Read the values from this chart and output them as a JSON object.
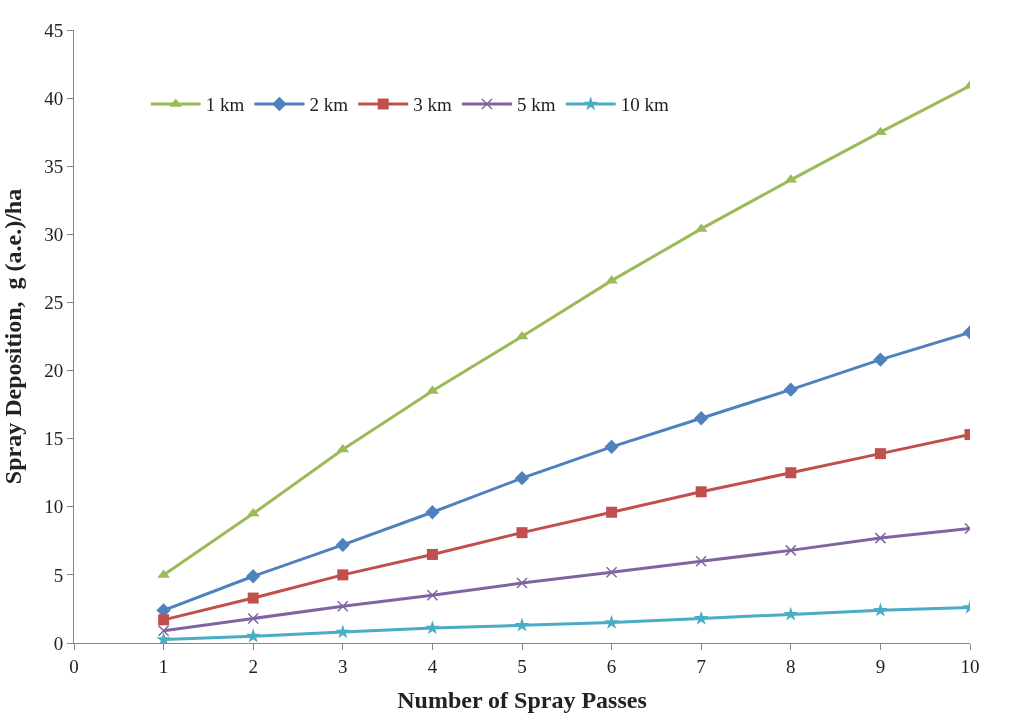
{
  "chart_data": {
    "type": "line",
    "xlabel": "Number of Spray Passes",
    "ylabel": "Spray Deposition,  g (a.e.)/ha",
    "x": [
      1,
      2,
      3,
      4,
      5,
      6,
      7,
      8,
      9,
      10
    ],
    "xlim": [
      0,
      10
    ],
    "xticks": [
      0,
      1,
      2,
      3,
      4,
      5,
      6,
      7,
      8,
      9,
      10
    ],
    "ylim": [
      0,
      45
    ],
    "yticks": [
      0,
      5,
      10,
      15,
      20,
      25,
      30,
      35,
      40,
      45
    ],
    "legend": "top left",
    "series": [
      {
        "name": "1 km",
        "color": "#9bbb59",
        "marker": "triangle",
        "values": [
          5.0,
          9.5,
          14.2,
          18.5,
          22.5,
          26.6,
          30.4,
          34.0,
          37.5,
          40.9
        ]
      },
      {
        "name": "2 km",
        "color": "#4f81bd",
        "marker": "diamond",
        "values": [
          2.4,
          4.9,
          7.2,
          9.6,
          12.1,
          14.4,
          16.5,
          18.6,
          20.8,
          22.8
        ]
      },
      {
        "name": "3 km",
        "color": "#c0504d",
        "marker": "square",
        "values": [
          1.7,
          3.3,
          5.0,
          6.5,
          8.1,
          9.6,
          11.1,
          12.5,
          13.9,
          15.3
        ]
      },
      {
        "name": "5 km",
        "color": "#8064a2",
        "marker": "cross",
        "values": [
          0.9,
          1.8,
          2.7,
          3.5,
          4.4,
          5.2,
          6.0,
          6.8,
          7.7,
          8.4
        ]
      },
      {
        "name": "10 km",
        "color": "#4bacc6",
        "marker": "star",
        "values": [
          0.25,
          0.5,
          0.8,
          1.1,
          1.3,
          1.5,
          1.8,
          2.1,
          2.4,
          2.6
        ]
      }
    ]
  }
}
